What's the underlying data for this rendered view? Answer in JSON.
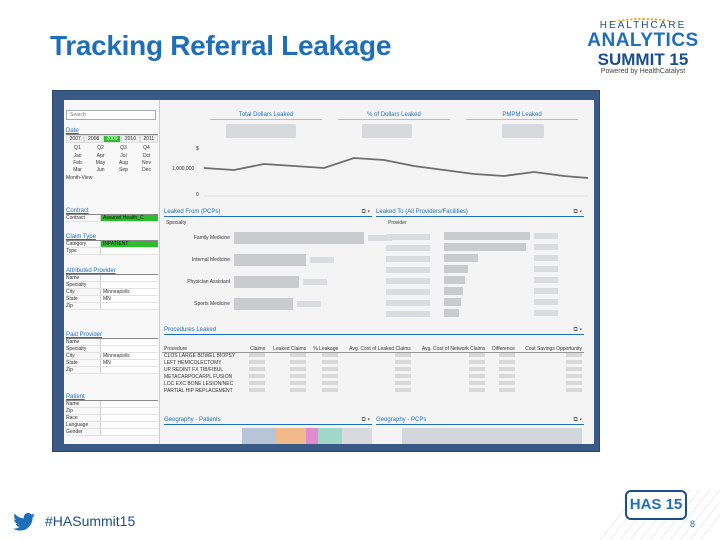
{
  "slide": {
    "title": "Tracking Referral Leakage",
    "hashtag": "#HASummit15",
    "page_number": "8"
  },
  "logo": {
    "line1": "HEALTHCARE",
    "line2": "ANALYTICS",
    "line3": "SUMMIT 15",
    "line4": "Powered by HealthCatalyst"
  },
  "footer_logo": {
    "text": "HAS 15"
  },
  "left_panel": {
    "search_placeholder": "Search",
    "date": {
      "header": "Date",
      "years": [
        "2007",
        "2008",
        "2009",
        "2010",
        "2011"
      ],
      "quarters": [
        "Q1",
        "Q2",
        "Q3",
        "Q4"
      ],
      "months": [
        "Jan",
        "Apr",
        "Jul",
        "Oct",
        "Feb",
        "May",
        "Aug",
        "Nov",
        "Mar",
        "Jun",
        "Sep",
        "Dec"
      ],
      "month_view": "Month-View"
    },
    "contract": {
      "header": "Contract",
      "rows": [
        {
          "k": "Contract",
          "v": "Assured Health_C"
        }
      ]
    },
    "claim_type": {
      "header": "Claim Type",
      "rows": [
        {
          "k": "Category",
          "v": "INPATIENT"
        },
        {
          "k": "Type",
          "v": ""
        }
      ]
    },
    "attributed_provider": {
      "header": "Attributed Provider",
      "rows": [
        {
          "k": "Name",
          "v": ""
        },
        {
          "k": "Specialty",
          "v": ""
        },
        {
          "k": "City",
          "v": "Minneapolis"
        },
        {
          "k": "State",
          "v": "MN"
        },
        {
          "k": "Zip",
          "v": ""
        }
      ]
    },
    "paid_provider": {
      "header": "Paid Provider",
      "rows": [
        {
          "k": "Name",
          "v": ""
        },
        {
          "k": "Specialty",
          "v": ""
        },
        {
          "k": "City",
          "v": "Minneapolis"
        },
        {
          "k": "State",
          "v": "MN"
        },
        {
          "k": "Zip",
          "v": ""
        }
      ]
    },
    "patient": {
      "header": "Patient",
      "rows": [
        {
          "k": "Name",
          "v": ""
        },
        {
          "k": "Zip",
          "v": ""
        },
        {
          "k": "Race",
          "v": ""
        },
        {
          "k": "Language",
          "v": ""
        },
        {
          "k": "Gender",
          "v": ""
        }
      ]
    }
  },
  "kpis": [
    {
      "label": "Total Dollars Leaked"
    },
    {
      "label": "% of Dollars Leaked"
    },
    {
      "label": "PMPM Leaked"
    }
  ],
  "trend": {
    "y_top_label": "$",
    "y_mid_label": "1,000,000",
    "y_bottom_label": "0"
  },
  "leaked_from": {
    "header": "Leaked From (PCPs)",
    "sub": "Specialty",
    "bars": [
      {
        "label": "Family Medicine",
        "value": 1.0
      },
      {
        "label": "Internal Medicine",
        "value": 0.55
      },
      {
        "label": "Physician Assistant",
        "value": 0.5
      },
      {
        "label": "Sports Medicine",
        "value": 0.45
      }
    ]
  },
  "leaked_to": {
    "header": "Leaked To (All Providers/Facilities)",
    "sub": "Provider",
    "bars": [
      {
        "value": 1.0
      },
      {
        "value": 0.95
      },
      {
        "value": 0.4
      },
      {
        "value": 0.28
      },
      {
        "value": 0.24
      },
      {
        "value": 0.22
      },
      {
        "value": 0.2
      },
      {
        "value": 0.18
      }
    ]
  },
  "procedures": {
    "header": "Procedures Leaked",
    "columns": [
      "Procedure",
      "Claims",
      "Leaked Claims",
      "% Leakage",
      "Avg. Cost of Leaked Claims",
      "Avg. Cost of Network Claims",
      "Difference",
      "Cost Savings Opportunity"
    ],
    "rows": [
      "CLOS LARGE BOWEL BIOPSY",
      "LEFT HEMICOLECTOMY",
      "UP REDINT FX TIB/FIBUL",
      "METACARPOCARPL FUSION",
      "LOC EXC BONE LESION/NEC",
      "PARTIAL HIP REPLACEMENT"
    ]
  },
  "geography": {
    "patients_header": "Geography - Patients",
    "pcps_header": "Geography - PCPs"
  },
  "colors": {
    "title": "#1f6fb8",
    "frame": "#3a5a86",
    "selected": "#2fbb2f",
    "trend_line": "#6e6e6e"
  }
}
